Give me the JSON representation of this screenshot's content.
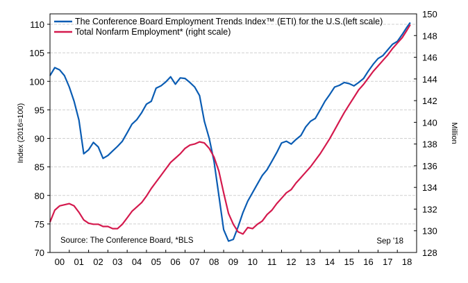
{
  "chart_data": {
    "type": "line",
    "title": "",
    "legend_position": "top-left",
    "ylabel_left": "Index (2016=100)",
    "ylabel_right": "Million",
    "ylim_left": [
      70,
      110
    ],
    "ylim_right": [
      128,
      150
    ],
    "yticks_left": [
      "70",
      "75",
      "80",
      "85",
      "90",
      "95",
      "100",
      "105",
      "110"
    ],
    "yticks_right": [
      "128",
      "130",
      "132",
      "134",
      "136",
      "138",
      "140",
      "142",
      "144",
      "146",
      "148",
      "150"
    ],
    "xticks": [
      "00",
      "01",
      "02",
      "03",
      "04",
      "05",
      "06",
      "07",
      "08",
      "09",
      "10",
      "11",
      "12",
      "13",
      "14",
      "15",
      "16",
      "17",
      "18"
    ],
    "grid": true,
    "source_note": "Source: The Conference Board, *BLS",
    "date_note": "Sep '18",
    "x": [
      2000.0,
      2000.25,
      2000.5,
      2000.75,
      2001.0,
      2001.25,
      2001.5,
      2001.75,
      2002.0,
      2002.25,
      2002.5,
      2002.75,
      2003.0,
      2003.25,
      2003.5,
      2003.75,
      2004.0,
      2004.25,
      2004.5,
      2004.75,
      2005.0,
      2005.25,
      2005.5,
      2005.75,
      2006.0,
      2006.25,
      2006.5,
      2006.75,
      2007.0,
      2007.25,
      2007.5,
      2007.75,
      2008.0,
      2008.25,
      2008.5,
      2008.75,
      2009.0,
      2009.25,
      2009.5,
      2009.75,
      2010.0,
      2010.25,
      2010.5,
      2010.75,
      2011.0,
      2011.25,
      2011.5,
      2011.75,
      2012.0,
      2012.25,
      2012.5,
      2012.75,
      2013.0,
      2013.25,
      2013.5,
      2013.75,
      2014.0,
      2014.25,
      2014.5,
      2014.75,
      2015.0,
      2015.25,
      2015.5,
      2015.75,
      2016.0,
      2016.25,
      2016.5,
      2016.75,
      2017.0,
      2017.25,
      2017.5,
      2017.75,
      2018.0,
      2018.25,
      2018.5,
      2018.67
    ],
    "series": [
      {
        "name": "The Conference Board Employment Trends Index™ (ETI) for the U.S.(left scale)",
        "axis": "left",
        "color": "#0a5cb3",
        "values": [
          101.0,
          102.4,
          102.0,
          101.0,
          99.0,
          96.5,
          93.2,
          87.3,
          88.0,
          89.3,
          88.5,
          86.5,
          87.0,
          87.8,
          88.6,
          89.5,
          91.0,
          92.5,
          93.3,
          94.5,
          96.0,
          96.5,
          98.8,
          99.2,
          99.9,
          100.8,
          99.5,
          100.6,
          100.5,
          99.8,
          99.0,
          97.5,
          93.0,
          90.0,
          86.0,
          80.0,
          74.0,
          72.0,
          72.3,
          74.5,
          77.0,
          79.0,
          80.5,
          82.0,
          83.5,
          84.5,
          86.0,
          87.5,
          89.2,
          89.5,
          89.0,
          89.8,
          90.5,
          92.0,
          93.0,
          93.5,
          95.0,
          96.5,
          97.7,
          99.0,
          99.3,
          99.8,
          99.6,
          99.2,
          99.8,
          100.5,
          101.8,
          103.0,
          104.0,
          104.5,
          105.5,
          106.5,
          107.0,
          108.2,
          109.5,
          110.3
        ]
      },
      {
        "name": "Total Nonfarm Employment* (right scale)",
        "axis": "right",
        "color": "#d4194d",
        "values": [
          130.8,
          131.9,
          132.3,
          132.4,
          132.5,
          132.3,
          131.7,
          131.0,
          130.7,
          130.6,
          130.6,
          130.4,
          130.4,
          130.2,
          130.2,
          130.6,
          131.2,
          131.8,
          132.2,
          132.6,
          133.2,
          133.9,
          134.5,
          135.1,
          135.7,
          136.3,
          136.7,
          137.1,
          137.6,
          137.9,
          138.0,
          138.2,
          138.1,
          137.6,
          136.8,
          135.5,
          133.5,
          131.6,
          130.6,
          129.9,
          129.7,
          130.3,
          130.2,
          130.6,
          130.9,
          131.5,
          131.9,
          132.5,
          133.0,
          133.5,
          133.8,
          134.4,
          134.9,
          135.4,
          135.9,
          136.5,
          137.1,
          137.8,
          138.5,
          139.3,
          140.1,
          140.9,
          141.6,
          142.3,
          143.0,
          143.5,
          144.1,
          144.7,
          145.2,
          145.7,
          146.2,
          146.8,
          147.3,
          147.8,
          148.5,
          149.0
        ]
      }
    ]
  }
}
